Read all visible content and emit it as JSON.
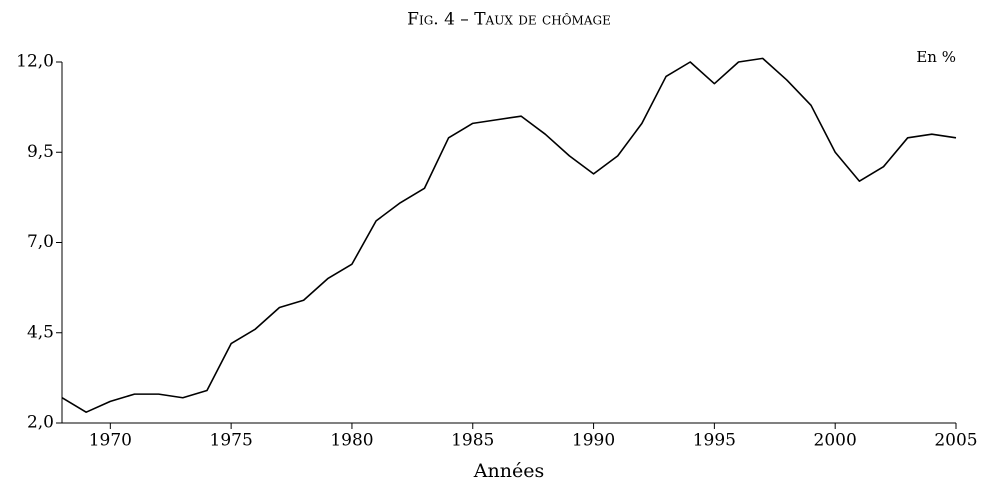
{
  "chart_data": {
    "type": "line",
    "title": "Fig. 4 – Taux de chômage",
    "annotation": "En %",
    "x_label": "Années",
    "x": [
      1968,
      1969,
      1970,
      1971,
      1972,
      1973,
      1974,
      1975,
      1976,
      1977,
      1978,
      1979,
      1980,
      1981,
      1982,
      1983,
      1984,
      1985,
      1986,
      1987,
      1988,
      1989,
      1990,
      1991,
      1992,
      1993,
      1994,
      1995,
      1996,
      1997,
      1998,
      1999,
      2000,
      2001,
      2002,
      2003,
      2004,
      2005
    ],
    "values": [
      2.7,
      2.3,
      2.6,
      2.8,
      2.8,
      2.7,
      2.9,
      4.2,
      4.6,
      5.2,
      5.4,
      6.0,
      6.4,
      7.6,
      8.1,
      8.5,
      9.9,
      10.3,
      10.4,
      10.5,
      10.0,
      9.4,
      8.9,
      9.4,
      10.3,
      11.6,
      12.0,
      11.4,
      12.0,
      12.1,
      11.5,
      10.8,
      9.5,
      8.7,
      9.1,
      9.9,
      10.0,
      9.9
    ],
    "color": "#000000",
    "xlim": [
      1968,
      2005
    ],
    "xticks": [
      1970,
      1975,
      1980,
      1985,
      1990,
      1995,
      2000,
      2005
    ],
    "ylim": [
      2,
      12
    ],
    "yticks": [
      {
        "value": 2,
        "label": "2,0"
      },
      {
        "value": 4.5,
        "label": "4,5"
      },
      {
        "value": 7,
        "label": "7,0"
      },
      {
        "value": 9.5,
        "label": "9,5"
      },
      {
        "value": 12,
        "label": "12,0"
      }
    ],
    "grid": false
  }
}
